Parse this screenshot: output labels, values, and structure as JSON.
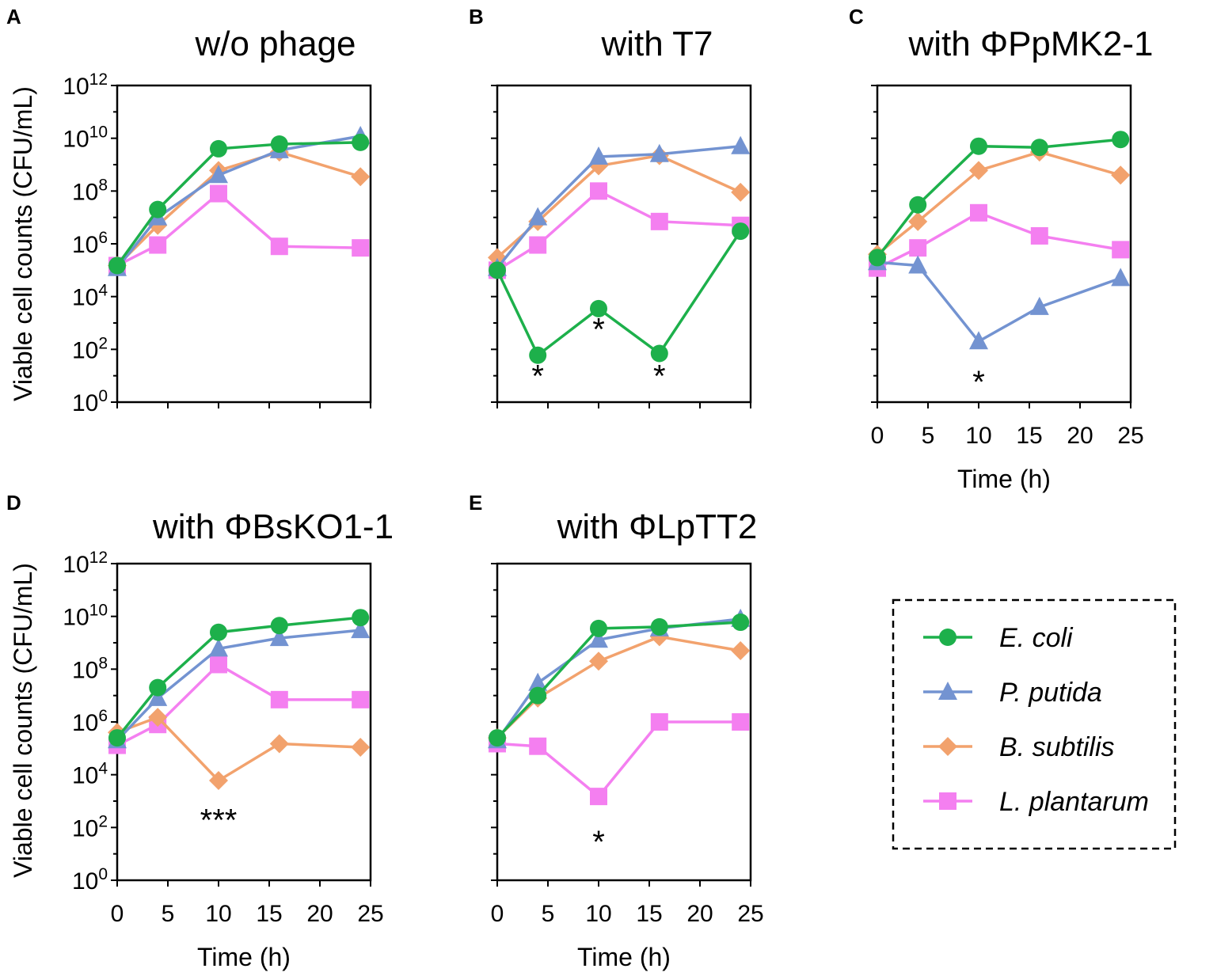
{
  "figure": {
    "xlabel": "Time (h)",
    "ylabel": "Viable cell counts (CFU/mL)"
  },
  "series_styles": {
    "E. coli": {
      "color": "#1db04b",
      "marker": "circle",
      "line": "#1db04b"
    },
    "P. putida": {
      "color": "#7393d1",
      "marker": "triangle",
      "line": "#7393d1"
    },
    "B. subtilis": {
      "color": "#f2a26d",
      "marker": "diamond",
      "line": "#f2a26d"
    },
    "L. plantarum": {
      "color": "#f47ff0",
      "marker": "square",
      "line": "#f47ff0"
    }
  },
  "legend": {
    "entries": [
      "E. coli",
      "P. putida",
      "B. subtilis",
      "L. plantarum"
    ],
    "placement": "bottom-right"
  },
  "chart_data": [
    {
      "panel": "A",
      "type": "line",
      "title": "w/o phage",
      "xlabel": "",
      "ylabel": "Viable cell counts (CFU/mL)",
      "yscale": "log",
      "xlim": [
        0,
        25
      ],
      "ylim": [
        1,
        1000000000000.0
      ],
      "xticks": [],
      "yticks": [
        "10^0",
        "10^2",
        "10^4",
        "10^6",
        "10^8",
        "10^10",
        "10^12"
      ],
      "series": [
        {
          "name": "E. coli",
          "x": [
            0,
            4,
            10,
            16,
            24
          ],
          "y": [
            150000.0,
            20000000.0,
            4000000000.0,
            6000000000.0,
            7000000000.0
          ]
        },
        {
          "name": "P. putida",
          "x": [
            0,
            4,
            10,
            16,
            24
          ],
          "y": [
            120000.0,
            10000000.0,
            400000000.0,
            3500000000.0,
            12000000000.0
          ]
        },
        {
          "name": "B. subtilis",
          "x": [
            0,
            4,
            10,
            16,
            24
          ],
          "y": [
            150000.0,
            5000000.0,
            600000000.0,
            3000000000.0,
            350000000.0
          ]
        },
        {
          "name": "L. plantarum",
          "x": [
            0,
            4,
            10,
            16,
            24
          ],
          "y": [
            150000.0,
            900000.0,
            80000000.0,
            800000.0,
            700000.0
          ]
        }
      ],
      "annotations": []
    },
    {
      "panel": "B",
      "type": "line",
      "title": "with T7",
      "xlabel": "",
      "yscale": "log",
      "xlim": [
        0,
        25
      ],
      "ylim": [
        1,
        1000000000000.0
      ],
      "xticks": [],
      "yticks": [],
      "series": [
        {
          "name": "E. coli",
          "x": [
            0,
            4,
            10,
            16,
            24
          ],
          "y": [
            100000.0,
            60,
            3500.0,
            70,
            3000000.0
          ]
        },
        {
          "name": "P. putida",
          "x": [
            0,
            4,
            10,
            16,
            24
          ],
          "y": [
            120000.0,
            10000000.0,
            2000000000.0,
            2500000000.0,
            5000000000.0
          ]
        },
        {
          "name": "B. subtilis",
          "x": [
            0,
            4,
            10,
            16,
            24
          ],
          "y": [
            300000.0,
            7000000.0,
            900000000.0,
            2200000000.0,
            90000000.0
          ]
        },
        {
          "name": "L. plantarum",
          "x": [
            0,
            4,
            10,
            16,
            24
          ],
          "y": [
            100000.0,
            900000.0,
            100000000.0,
            7000000.0,
            5000000.0
          ]
        }
      ],
      "annotations": [
        {
          "text": "*",
          "x": 4,
          "y": 10
        },
        {
          "text": "*",
          "x": 10,
          "y": 600
        },
        {
          "text": "*",
          "x": 16,
          "y": 10
        }
      ]
    },
    {
      "panel": "C",
      "type": "line",
      "title": "with ΦPpMK2-1",
      "xlabel": "Time (h)",
      "yscale": "log",
      "xlim": [
        0,
        25
      ],
      "ylim": [
        1,
        1000000000000.0
      ],
      "xticks": [
        "0",
        "5",
        "10",
        "15",
        "20",
        "25"
      ],
      "yticks": [],
      "series": [
        {
          "name": "E. coli",
          "x": [
            0,
            4,
            10,
            16,
            24
          ],
          "y": [
            300000.0,
            30000000.0,
            5000000000.0,
            4500000000.0,
            9000000000.0
          ]
        },
        {
          "name": "P. putida",
          "x": [
            0,
            4,
            10,
            16,
            24
          ],
          "y": [
            200000.0,
            150000.0,
            200,
            4000.0,
            50000.0
          ]
        },
        {
          "name": "B. subtilis",
          "x": [
            0,
            4,
            10,
            16,
            24
          ],
          "y": [
            400000.0,
            7000000.0,
            600000000.0,
            3000000000.0,
            400000000.0
          ]
        },
        {
          "name": "L. plantarum",
          "x": [
            0,
            4,
            10,
            16,
            24
          ],
          "y": [
            120000.0,
            700000.0,
            15000000.0,
            2000000.0,
            600000.0
          ]
        }
      ],
      "annotations": [
        {
          "text": "*",
          "x": 10,
          "y": 6
        }
      ]
    },
    {
      "panel": "D",
      "type": "line",
      "title": "with ΦBsKO1-1",
      "xlabel": "Time (h)",
      "ylabel": "Viable cell counts (CFU/mL)",
      "yscale": "log",
      "xlim": [
        0,
        25
      ],
      "ylim": [
        1,
        1000000000000.0
      ],
      "xticks": [
        "0",
        "5",
        "10",
        "15",
        "20",
        "25"
      ],
      "yticks": [
        "10^0",
        "10^2",
        "10^4",
        "10^6",
        "10^8",
        "10^10",
        "10^12"
      ],
      "series": [
        {
          "name": "E. coli",
          "x": [
            0,
            4,
            10,
            16,
            24
          ],
          "y": [
            250000.0,
            20000000.0,
            2500000000.0,
            4500000000.0,
            9000000000.0
          ]
        },
        {
          "name": "P. putida",
          "x": [
            0,
            4,
            10,
            16,
            24
          ],
          "y": [
            200000.0,
            8000000.0,
            600000000.0,
            1500000000.0,
            3000000000.0
          ]
        },
        {
          "name": "B. subtilis",
          "x": [
            0,
            4,
            10,
            16,
            24
          ],
          "y": [
            400000.0,
            1500000.0,
            6000.0,
            150000.0,
            110000.0
          ]
        },
        {
          "name": "L. plantarum",
          "x": [
            0,
            4,
            10,
            16,
            24
          ],
          "y": [
            130000.0,
            800000.0,
            150000000.0,
            7000000.0,
            7000000.0
          ]
        }
      ],
      "annotations": [
        {
          "text": "***",
          "x": 10,
          "y": 200
        }
      ]
    },
    {
      "panel": "E",
      "type": "line",
      "title": "with ΦLpTT2",
      "xlabel": "Time (h)",
      "yscale": "log",
      "xlim": [
        0,
        25
      ],
      "ylim": [
        1,
        1000000000000.0
      ],
      "xticks": [
        "0",
        "5",
        "10",
        "15",
        "20",
        "25"
      ],
      "yticks": [],
      "series": [
        {
          "name": "E. coli",
          "x": [
            0,
            4,
            10,
            16,
            24
          ],
          "y": [
            250000.0,
            10000000.0,
            3500000000.0,
            4000000000.0,
            6000000000.0
          ]
        },
        {
          "name": "P. putida",
          "x": [
            0,
            4,
            10,
            16,
            24
          ],
          "y": [
            200000.0,
            30000000.0,
            1300000000.0,
            3500000000.0,
            8000000000.0
          ]
        },
        {
          "name": "B. subtilis",
          "x": [
            0,
            4,
            10,
            16,
            24
          ],
          "y": [
            250000.0,
            8000000.0,
            200000000.0,
            1700000000.0,
            500000000.0
          ]
        },
        {
          "name": "L. plantarum",
          "x": [
            0,
            4,
            10,
            16,
            24
          ],
          "y": [
            150000.0,
            120000.0,
            1500.0,
            1000000.0,
            1000000.0
          ]
        }
      ],
      "annotations": [
        {
          "text": "*",
          "x": 10,
          "y": 30
        }
      ]
    }
  ]
}
